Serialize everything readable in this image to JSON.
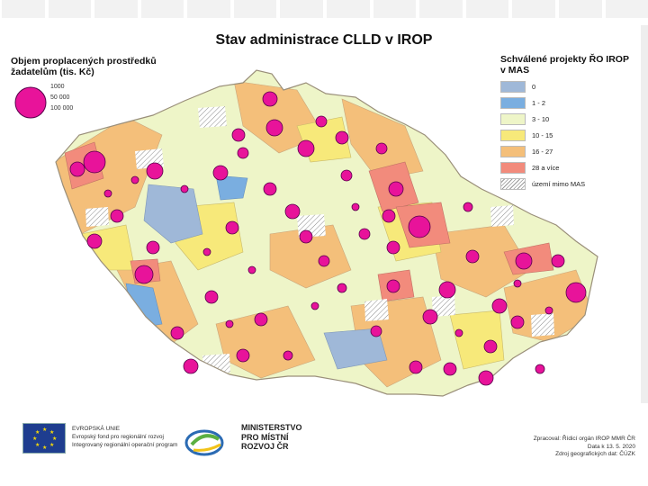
{
  "title": "Stav administrace CLLD v IROP",
  "legend_bubbles": {
    "title_line1": "Objem proplacených prostředků",
    "title_line2": "žadatelům (tis. Kč)",
    "items": [
      "1000",
      "50 000",
      "100 000"
    ],
    "color": "#e8139a"
  },
  "legend_classes": {
    "title_line1": "Schválené projekty ŘO IROP",
    "title_line2": "v MAS",
    "items": [
      {
        "label": "0",
        "color": "#9fb8d8"
      },
      {
        "label": "1 - 2",
        "color": "#7aaee0"
      },
      {
        "label": "3 - 10",
        "color": "#eef5c8"
      },
      {
        "label": "10 - 15",
        "color": "#f7e97a"
      },
      {
        "label": "16 - 27",
        "color": "#f4bf7a"
      },
      {
        "label": "28 a více",
        "color": "#f28b7c"
      },
      {
        "label": "území mimo MAS",
        "color": "hatch"
      }
    ]
  },
  "footer": {
    "eu_line1": "EVROPSKÁ UNIE",
    "eu_line2": "Evropský fond pro regionální rozvoj",
    "eu_line3": "Integrovaný regionální operační program",
    "mmr_line1": "MINISTERSTVO",
    "mmr_line2": "PRO MÍSTNÍ",
    "mmr_line3": "ROZVOJ ČR",
    "source_line1": "Zpracoval: Řídicí orgán IROP MMR ČR",
    "source_line2": "Data k 13. 5. 2020",
    "source_line3": "Zdroj geografických dat: ČÚZK"
  }
}
